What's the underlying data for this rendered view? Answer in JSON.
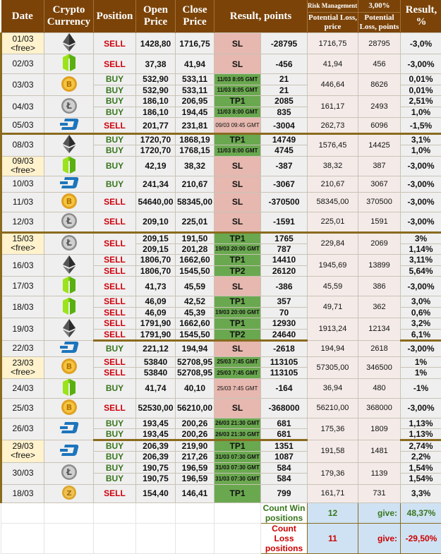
{
  "header": {
    "date": "Date",
    "crypto": "Crypto Currency",
    "position": "Position",
    "open": "Open Price",
    "close": "Close Price",
    "result_points": "Result, points",
    "risk_label": "Risk Management:",
    "risk_value": "3,00%",
    "loss_price": "Potential Loss, price",
    "loss_points": "Potential Loss, points",
    "result_pct": "Result, %"
  },
  "colors": {
    "header_bg": "#7b4308",
    "win": "#6aa84f",
    "loss": "#e6b8af",
    "free": "#fff2cc",
    "buy": "#38761d",
    "sell": "#d0000d",
    "summary": "#cfe2f3"
  },
  "groups": [
    {
      "date": "01/03",
      "free": "<free>",
      "coin": "ethereum",
      "loss_price": "1716,75",
      "loss_points": "28795",
      "rows": [
        {
          "pos": "SELL",
          "open": "1428,80",
          "close": "1716,75",
          "result": "SL",
          "status": "loss",
          "points": "-28795",
          "pct": "-3,0%"
        }
      ]
    },
    {
      "date": "02/03",
      "coin": "neo",
      "loss_price": "41,94",
      "loss_points": "456",
      "rows": [
        {
          "pos": "SELL",
          "open": "37,38",
          "close": "41,94",
          "result": "SL",
          "status": "loss",
          "points": "-456",
          "pct": "-3,00%"
        }
      ]
    },
    {
      "date": "03/03",
      "coin": "bitcoin",
      "loss_price": "446,64",
      "loss_points": "8626",
      "rows": [
        {
          "pos": "BUY",
          "open": "532,90",
          "close": "533,11",
          "result": "11/03 8:05 GMT",
          "status": "win",
          "points": "21",
          "pct": "0,01%"
        },
        {
          "pos": "BUY",
          "open": "532,90",
          "close": "533,11",
          "result": "11/03 8:05 GMT",
          "status": "win",
          "points": "21",
          "pct": "0,01%"
        }
      ]
    },
    {
      "date": "04/03",
      "coin": "litecoin",
      "loss_price": "161,17",
      "loss_points": "2493",
      "rows": [
        {
          "pos": "BUY",
          "open": "186,10",
          "close": "206,95",
          "result": "TP1",
          "status": "win",
          "points": "2085",
          "pct": "2,51%"
        },
        {
          "pos": "BUY",
          "open": "186,10",
          "close": "194,45",
          "result": "11/03 8:00 GMT",
          "status": "win",
          "points": "835",
          "pct": "1,0%"
        }
      ]
    },
    {
      "date": "05/03",
      "coin": "dash",
      "loss_price": "262,73",
      "loss_points": "6096",
      "rows": [
        {
          "pos": "SELL",
          "open": "201,77",
          "close": "231,81",
          "result": "09/03 09:45 GMT",
          "status": "loss",
          "points": "-3004",
          "pct": "-1,5%"
        }
      ]
    },
    {
      "date": "08/03",
      "coin": "ethereum",
      "loss_price": "1576,45",
      "loss_points": "14425",
      "rows": [
        {
          "pos": "BUY",
          "open": "1720,70",
          "close": "1868,19",
          "result": "TP1",
          "status": "win",
          "points": "14749",
          "pct": "3,1%"
        },
        {
          "pos": "BUY",
          "open": "1720,70",
          "close": "1768,15",
          "result": "11/03 8:00 GMT",
          "status": "win",
          "points": "4745",
          "pct": "1,0%"
        }
      ]
    },
    {
      "date": "09/03",
      "free": "<free>",
      "coin": "neo",
      "loss_price": "38,32",
      "loss_points": "387",
      "rows": [
        {
          "pos": "BUY",
          "open": "42,19",
          "close": "38,32",
          "result": "SL",
          "status": "loss",
          "points": "-387",
          "pct": "-3,00%"
        }
      ]
    },
    {
      "date": "10/03",
      "coin": "dash",
      "loss_price": "210,67",
      "loss_points": "3067",
      "rows": [
        {
          "pos": "BUY",
          "open": "241,34",
          "close": "210,67",
          "result": "SL",
          "status": "loss",
          "points": "-3067",
          "pct": "-3,00%"
        }
      ]
    },
    {
      "date": "11/03",
      "coin": "bitcoin",
      "loss_price": "58345,00",
      "loss_points": "370500",
      "rows": [
        {
          "pos": "SELL",
          "open": "54640,00",
          "close": "58345,00",
          "result": "SL",
          "status": "loss",
          "points": "-370500",
          "pct": "-3,00%"
        }
      ]
    },
    {
      "date": "12/03",
      "coin": "litecoin",
      "loss_price": "225,01",
      "loss_points": "1591",
      "rows": [
        {
          "pos": "SELL",
          "open": "209,10",
          "close": "225,01",
          "result": "SL",
          "status": "loss",
          "points": "-1591",
          "pct": "-3,00%"
        }
      ]
    },
    {
      "date": "15/03",
      "free": "<free>",
      "coin": "litecoin",
      "merged_position": true,
      "loss_price": "229,84",
      "loss_points": "2069",
      "rows": [
        {
          "pos": "SELL",
          "open": "209,15",
          "close": "191,50",
          "result": "TP1",
          "status": "win",
          "points": "1765",
          "pct": "3%"
        },
        {
          "pos": "SELL",
          "open": "209,15",
          "close": "201,28",
          "result": "19/03 20:00 GMT",
          "status": "win",
          "points": "787",
          "pct": "1,14%"
        }
      ]
    },
    {
      "date": "16/03",
      "coin": "ethereum",
      "loss_price": "1945,69",
      "loss_points": "13899",
      "rows": [
        {
          "pos": "SELL",
          "open": "1806,70",
          "close": "1662,60",
          "result": "TP1",
          "status": "win",
          "points": "14410",
          "pct": "3,11%"
        },
        {
          "pos": "SELL",
          "open": "1806,70",
          "close": "1545,50",
          "result": "TP2",
          "status": "win",
          "points": "26120",
          "pct": "5,64%"
        }
      ]
    },
    {
      "date": "17/03",
      "coin": "neo",
      "loss_price": "45,59",
      "loss_points": "386",
      "rows": [
        {
          "pos": "SELL",
          "open": "41,73",
          "close": "45,59",
          "result": "SL",
          "status": "loss",
          "points": "-386",
          "pct": "-3,00%"
        }
      ]
    },
    {
      "date": "18/03",
      "coin": "neo",
      "loss_price": "49,71",
      "loss_points": "362",
      "rows": [
        {
          "pos": "SELL",
          "open": "46,09",
          "close": "42,52",
          "result": "TP1",
          "status": "win",
          "points": "357",
          "pct": "3,0%"
        },
        {
          "pos": "SELL",
          "open": "46,09",
          "close": "45,39",
          "result": "19/03 20:00 GMT",
          "status": "win",
          "points": "70",
          "pct": "0,6%"
        }
      ]
    },
    {
      "date": "19/03",
      "coin": "ethereum",
      "loss_price": "1913,24",
      "loss_points": "12134",
      "rows": [
        {
          "pos": "SELL",
          "open": "1791,90",
          "close": "1662,60",
          "result": "TP1",
          "status": "win",
          "points": "12930",
          "pct": "3,2%"
        },
        {
          "pos": "SELL",
          "open": "1791,90",
          "close": "1545,50",
          "result": "TP2",
          "status": "win",
          "points": "24640",
          "pct": "6,1%"
        }
      ]
    },
    {
      "date": "22/03",
      "coin": "dash",
      "loss_price": "194,94",
      "loss_points": "2618",
      "rows": [
        {
          "pos": "BUY",
          "open": "221,12",
          "close": "194,94",
          "result": "SL",
          "status": "loss",
          "points": "-2618",
          "pct": "-3,00%"
        }
      ]
    },
    {
      "date": "23/03",
      "free": "<free>",
      "coin": "bitcoin",
      "loss_price": "57305,00",
      "loss_points": "346500",
      "rows": [
        {
          "pos": "SELL",
          "open": "53840",
          "close": "52708,95",
          "result": "25/03 7:45 GMT",
          "status": "win",
          "points": "113105",
          "pct": "1%"
        },
        {
          "pos": "SELL",
          "open": "53840",
          "close": "52708,95",
          "result": "25/03 7:45 GMT",
          "status": "win",
          "points": "113105",
          "pct": "1%"
        }
      ]
    },
    {
      "date": "24/03",
      "coin": "neo",
      "loss_price": "36,94",
      "loss_points": "480",
      "rows": [
        {
          "pos": "BUY",
          "open": "41,74",
          "close": "40,10",
          "result": "25/03 7:45 GMT",
          "status": "loss",
          "points": "-164",
          "pct": "-1%"
        }
      ]
    },
    {
      "date": "25/03",
      "coin": "bitcoin",
      "loss_price": "56210,00",
      "loss_points": "368000",
      "rows": [
        {
          "pos": "SELL",
          "open": "52530,00",
          "close": "56210,00",
          "result": "SL",
          "status": "loss",
          "points": "-368000",
          "pct": "-3,00%"
        }
      ]
    },
    {
      "date": "26/03",
      "coin": "dash",
      "loss_price": "175,36",
      "loss_points": "1809",
      "rows": [
        {
          "pos": "BUY",
          "open": "193,45",
          "close": "200,26",
          "result": "26/03 21:30 GMT",
          "status": "win",
          "points": "681",
          "pct": "1,13%"
        },
        {
          "pos": "BUY",
          "open": "193,45",
          "close": "200,26",
          "result": "26/03 21:30 GMT",
          "status": "win",
          "points": "681",
          "pct": "1,13%"
        }
      ]
    },
    {
      "date": "29/03",
      "free": "<free>",
      "coin": "dash",
      "loss_price": "191,58",
      "loss_points": "1481",
      "rows": [
        {
          "pos": "BUY",
          "open": "206,39",
          "close": "219,90",
          "result": "TP1",
          "status": "win",
          "points": "1351",
          "pct": "2,74%"
        },
        {
          "pos": "BUY",
          "open": "206,39",
          "close": "217,26",
          "result": "31/03 07:30 GMT",
          "status": "win",
          "points": "1087",
          "pct": "2,2%"
        }
      ]
    },
    {
      "date": "30/03",
      "coin": "litecoin",
      "loss_price": "179,36",
      "loss_points": "1139",
      "rows": [
        {
          "pos": "BUY",
          "open": "190,75",
          "close": "196,59",
          "result": "31/03 07:30 GMT",
          "status": "win",
          "points": "584",
          "pct": "1,54%"
        },
        {
          "pos": "BUY",
          "open": "190,75",
          "close": "196,59",
          "result": "31/03 07:30 GMT",
          "status": "win",
          "points": "584",
          "pct": "1,54%"
        }
      ]
    },
    {
      "date": "18/03",
      "coin": "zcash",
      "loss_price": "161,71",
      "loss_points": "731",
      "rows": [
        {
          "pos": "SELL",
          "open": "154,40",
          "close": "146,41",
          "result": "TP1",
          "status": "win",
          "points": "799",
          "pct": "3,3%"
        }
      ]
    }
  ],
  "summary": {
    "win_label": "Count Win positions",
    "win_count": "12",
    "win_give": "give:",
    "win_pct": "48,37%",
    "loss_label": "Count Loss positions",
    "loss_count": "11",
    "loss_give": "give:",
    "loss_pct": "-29,50%"
  }
}
